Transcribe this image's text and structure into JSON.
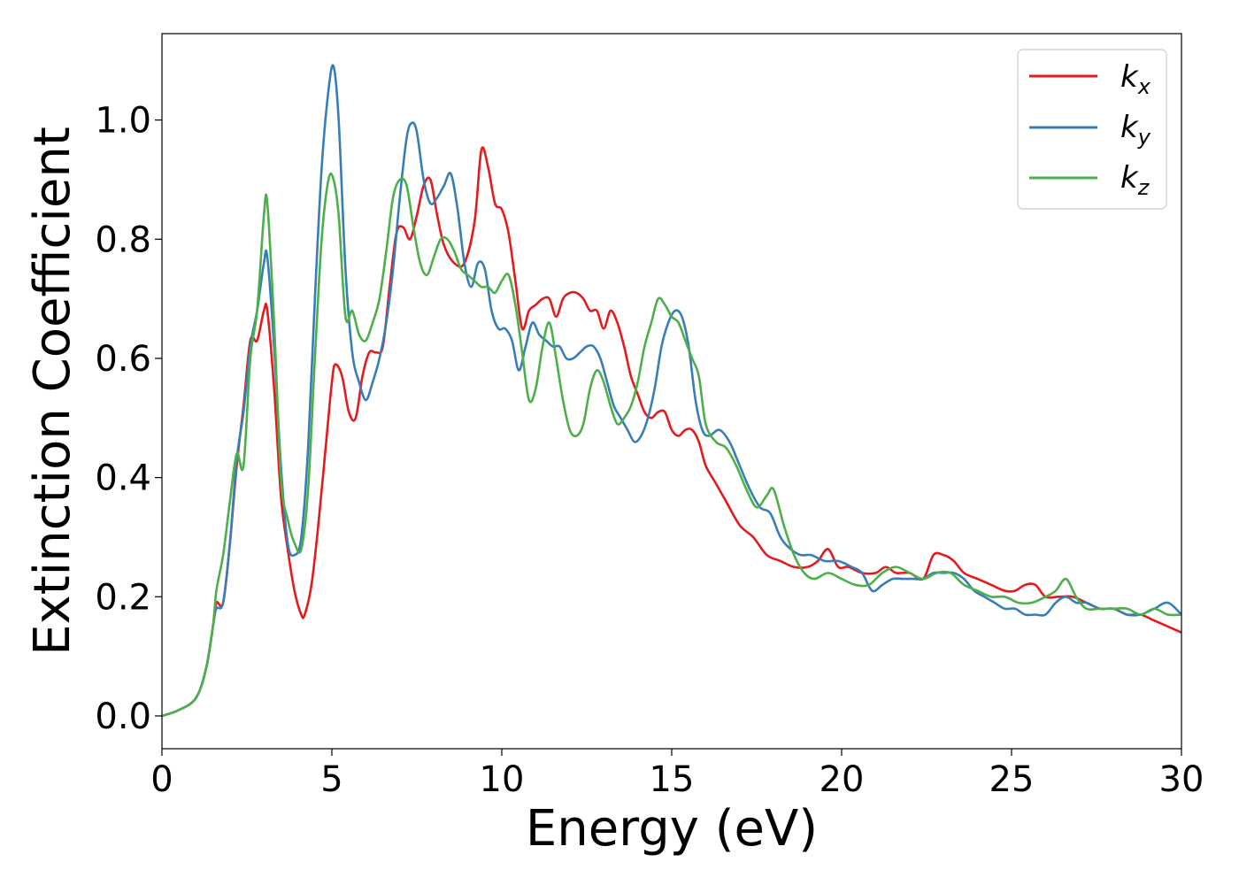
{
  "chart_data": {
    "type": "line",
    "xlabel": "Energy (eV)",
    "ylabel": "Extinction Coefficient",
    "xlim": [
      0,
      30
    ],
    "ylim": [
      -0.055,
      1.145
    ],
    "xticks": [
      0,
      5,
      10,
      15,
      20,
      25,
      30
    ],
    "xtick_labels": [
      "0",
      "5",
      "10",
      "15",
      "20",
      "25",
      "30"
    ],
    "yticks": [
      0.0,
      0.2,
      0.4,
      0.6,
      0.8,
      1.0
    ],
    "ytick_labels": [
      "0.0",
      "0.2",
      "0.4",
      "0.6",
      "0.8",
      "1.0"
    ],
    "grid": false,
    "legend_position": "top-right",
    "series": [
      {
        "name": "k_x",
        "label_base": "k",
        "label_sub": "x",
        "color": "#e41a1c",
        "x": [
          0,
          0.5,
          1.0,
          1.3,
          1.5,
          1.6,
          1.8,
          2.0,
          2.2,
          2.4,
          2.6,
          2.8,
          3.0,
          3.1,
          3.3,
          3.5,
          3.7,
          3.9,
          4.1,
          4.2,
          4.4,
          4.6,
          4.8,
          5.0,
          5.1,
          5.3,
          5.5,
          5.7,
          5.9,
          6.1,
          6.3,
          6.5,
          6.7,
          6.9,
          7.1,
          7.3,
          7.5,
          7.7,
          7.9,
          8.1,
          8.3,
          8.6,
          8.9,
          9.2,
          9.4,
          9.6,
          9.8,
          10.0,
          10.2,
          10.4,
          10.6,
          10.8,
          11.0,
          11.2,
          11.4,
          11.6,
          11.8,
          12.0,
          12.2,
          12.4,
          12.6,
          12.8,
          13.0,
          13.2,
          13.4,
          13.6,
          13.8,
          14.0,
          14.2,
          14.4,
          14.6,
          14.8,
          15.0,
          15.2,
          15.4,
          15.6,
          15.8,
          16.0,
          16.3,
          16.6,
          17.0,
          17.4,
          17.8,
          18.2,
          18.6,
          19.0,
          19.3,
          19.6,
          19.9,
          20.2,
          20.6,
          21.0,
          21.3,
          21.6,
          22.0,
          22.4,
          22.7,
          23.0,
          23.3,
          23.6,
          24.0,
          24.4,
          24.8,
          25.1,
          25.4,
          25.7,
          26.0,
          26.4,
          26.8,
          27.2,
          27.6,
          28.0,
          28.4,
          28.8,
          29.2,
          29.6,
          30.0
        ],
        "y": [
          0.0,
          0.01,
          0.03,
          0.08,
          0.15,
          0.19,
          0.19,
          0.29,
          0.42,
          0.52,
          0.63,
          0.63,
          0.68,
          0.68,
          0.55,
          0.37,
          0.28,
          0.21,
          0.17,
          0.17,
          0.22,
          0.32,
          0.44,
          0.56,
          0.59,
          0.57,
          0.51,
          0.5,
          0.57,
          0.61,
          0.61,
          0.62,
          0.72,
          0.81,
          0.82,
          0.8,
          0.84,
          0.89,
          0.9,
          0.84,
          0.79,
          0.76,
          0.76,
          0.83,
          0.95,
          0.92,
          0.86,
          0.85,
          0.81,
          0.73,
          0.65,
          0.68,
          0.69,
          0.7,
          0.7,
          0.67,
          0.7,
          0.71,
          0.71,
          0.7,
          0.68,
          0.68,
          0.65,
          0.68,
          0.66,
          0.62,
          0.57,
          0.54,
          0.51,
          0.5,
          0.51,
          0.51,
          0.48,
          0.47,
          0.48,
          0.48,
          0.46,
          0.42,
          0.39,
          0.36,
          0.32,
          0.3,
          0.27,
          0.26,
          0.25,
          0.25,
          0.26,
          0.28,
          0.25,
          0.25,
          0.24,
          0.24,
          0.25,
          0.24,
          0.24,
          0.23,
          0.27,
          0.27,
          0.26,
          0.24,
          0.23,
          0.22,
          0.21,
          0.21,
          0.22,
          0.22,
          0.2,
          0.2,
          0.2,
          0.19,
          0.18,
          0.18,
          0.17,
          0.17,
          0.16,
          0.15,
          0.14
        ]
      },
      {
        "name": "k_y",
        "label_base": "k",
        "label_sub": "y",
        "color": "#377eb8",
        "x": [
          0,
          0.5,
          1.0,
          1.3,
          1.5,
          1.6,
          1.8,
          2.0,
          2.2,
          2.4,
          2.6,
          2.8,
          3.0,
          3.1,
          3.3,
          3.5,
          3.7,
          3.9,
          4.1,
          4.3,
          4.5,
          4.7,
          4.9,
          5.05,
          5.2,
          5.4,
          5.6,
          5.8,
          6.0,
          6.2,
          6.4,
          6.6,
          6.8,
          7.0,
          7.2,
          7.35,
          7.5,
          7.7,
          7.9,
          8.1,
          8.3,
          8.5,
          8.7,
          8.9,
          9.1,
          9.3,
          9.5,
          9.7,
          9.9,
          10.1,
          10.3,
          10.5,
          10.7,
          10.9,
          11.1,
          11.3,
          11.5,
          11.7,
          11.9,
          12.1,
          12.3,
          12.5,
          12.7,
          12.9,
          13.1,
          13.3,
          13.5,
          13.7,
          13.9,
          14.1,
          14.3,
          14.5,
          14.7,
          14.9,
          15.1,
          15.3,
          15.5,
          15.7,
          15.9,
          16.1,
          16.4,
          16.7,
          17.0,
          17.3,
          17.6,
          17.9,
          18.2,
          18.5,
          18.8,
          19.1,
          19.5,
          19.9,
          20.3,
          20.6,
          20.9,
          21.2,
          21.5,
          21.8,
          22.1,
          22.4,
          22.7,
          23.0,
          23.3,
          23.6,
          23.9,
          24.2,
          24.5,
          24.8,
          25.1,
          25.4,
          25.7,
          26.0,
          26.3,
          26.6,
          26.9,
          27.2,
          27.6,
          28.0,
          28.4,
          28.8,
          29.2,
          29.6,
          30.0
        ],
        "y": [
          0.0,
          0.01,
          0.03,
          0.08,
          0.15,
          0.18,
          0.19,
          0.29,
          0.43,
          0.51,
          0.62,
          0.68,
          0.76,
          0.77,
          0.62,
          0.42,
          0.29,
          0.27,
          0.3,
          0.45,
          0.7,
          0.92,
          1.05,
          1.09,
          1.0,
          0.75,
          0.61,
          0.56,
          0.53,
          0.56,
          0.6,
          0.66,
          0.75,
          0.87,
          0.97,
          0.995,
          0.98,
          0.9,
          0.86,
          0.87,
          0.89,
          0.91,
          0.85,
          0.76,
          0.72,
          0.76,
          0.75,
          0.68,
          0.65,
          0.65,
          0.63,
          0.58,
          0.62,
          0.66,
          0.64,
          0.63,
          0.62,
          0.62,
          0.6,
          0.6,
          0.61,
          0.62,
          0.62,
          0.6,
          0.56,
          0.52,
          0.5,
          0.48,
          0.46,
          0.47,
          0.5,
          0.55,
          0.62,
          0.66,
          0.68,
          0.67,
          0.62,
          0.53,
          0.48,
          0.47,
          0.48,
          0.46,
          0.42,
          0.38,
          0.35,
          0.34,
          0.3,
          0.28,
          0.27,
          0.27,
          0.26,
          0.26,
          0.25,
          0.24,
          0.21,
          0.22,
          0.23,
          0.23,
          0.23,
          0.23,
          0.24,
          0.24,
          0.24,
          0.23,
          0.21,
          0.2,
          0.19,
          0.18,
          0.18,
          0.17,
          0.17,
          0.17,
          0.19,
          0.2,
          0.19,
          0.19,
          0.18,
          0.18,
          0.17,
          0.17,
          0.18,
          0.19,
          0.17
        ]
      },
      {
        "name": "k_z",
        "label_base": "k",
        "label_sub": "z",
        "color": "#4daf4a",
        "x": [
          0,
          0.5,
          1.0,
          1.3,
          1.5,
          1.6,
          1.8,
          2.0,
          2.2,
          2.4,
          2.6,
          2.8,
          3.0,
          3.1,
          3.3,
          3.5,
          3.7,
          3.9,
          4.1,
          4.3,
          4.5,
          4.7,
          4.9,
          5.05,
          5.2,
          5.4,
          5.6,
          5.8,
          6.0,
          6.2,
          6.4,
          6.6,
          6.8,
          7.0,
          7.2,
          7.4,
          7.6,
          7.8,
          8.0,
          8.2,
          8.4,
          8.6,
          8.8,
          9.0,
          9.2,
          9.4,
          9.6,
          9.8,
          10.0,
          10.2,
          10.4,
          10.6,
          10.8,
          11.0,
          11.2,
          11.4,
          11.6,
          11.8,
          12.0,
          12.2,
          12.4,
          12.6,
          12.8,
          13.0,
          13.2,
          13.4,
          13.6,
          13.8,
          14.0,
          14.2,
          14.4,
          14.6,
          14.8,
          15.0,
          15.2,
          15.4,
          15.6,
          15.8,
          16.0,
          16.3,
          16.6,
          16.9,
          17.2,
          17.5,
          17.8,
          18.0,
          18.3,
          18.6,
          18.9,
          19.2,
          19.6,
          20.0,
          20.4,
          20.8,
          21.2,
          21.6,
          22.0,
          22.4,
          22.8,
          23.2,
          23.6,
          24.0,
          24.4,
          24.8,
          25.2,
          25.6,
          26.0,
          26.3,
          26.6,
          26.9,
          27.2,
          27.6,
          28.0,
          28.4,
          28.8,
          29.2,
          29.6,
          30.0
        ],
        "y": [
          0.0,
          0.01,
          0.03,
          0.08,
          0.15,
          0.21,
          0.27,
          0.36,
          0.44,
          0.42,
          0.6,
          0.68,
          0.84,
          0.86,
          0.66,
          0.4,
          0.33,
          0.29,
          0.28,
          0.38,
          0.6,
          0.8,
          0.9,
          0.9,
          0.84,
          0.67,
          0.68,
          0.64,
          0.63,
          0.66,
          0.7,
          0.78,
          0.87,
          0.9,
          0.89,
          0.82,
          0.76,
          0.74,
          0.77,
          0.8,
          0.8,
          0.78,
          0.75,
          0.74,
          0.73,
          0.72,
          0.72,
          0.71,
          0.73,
          0.74,
          0.69,
          0.61,
          0.53,
          0.55,
          0.62,
          0.66,
          0.6,
          0.53,
          0.48,
          0.47,
          0.49,
          0.55,
          0.58,
          0.56,
          0.52,
          0.49,
          0.5,
          0.52,
          0.56,
          0.62,
          0.66,
          0.7,
          0.69,
          0.67,
          0.66,
          0.63,
          0.6,
          0.57,
          0.49,
          0.46,
          0.45,
          0.42,
          0.38,
          0.35,
          0.37,
          0.38,
          0.32,
          0.27,
          0.24,
          0.23,
          0.24,
          0.23,
          0.22,
          0.22,
          0.24,
          0.25,
          0.24,
          0.23,
          0.24,
          0.24,
          0.22,
          0.21,
          0.2,
          0.2,
          0.19,
          0.19,
          0.2,
          0.21,
          0.23,
          0.2,
          0.18,
          0.18,
          0.18,
          0.18,
          0.17,
          0.18,
          0.17,
          0.17
        ]
      }
    ]
  }
}
